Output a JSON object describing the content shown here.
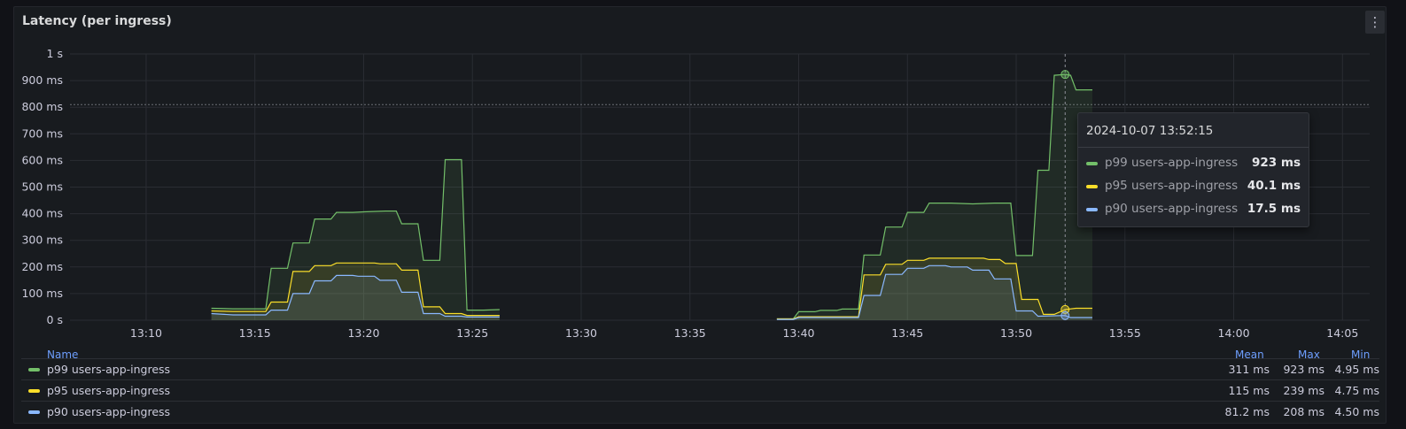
{
  "panel": {
    "title": "Latency (per ingress)",
    "menu_icon": "vertical-dots-icon"
  },
  "chart_data": {
    "type": "area",
    "title": "Latency (per ingress)",
    "x_ticks": [
      "13:10",
      "13:15",
      "13:20",
      "13:25",
      "13:30",
      "13:35",
      "13:40",
      "13:45",
      "13:50",
      "13:55",
      "14:00",
      "14:05"
    ],
    "y_ticks": [
      "0 s",
      "100 ms",
      "200 ms",
      "300 ms",
      "400 ms",
      "500 ms",
      "600 ms",
      "700 ms",
      "800 ms",
      "900 ms",
      "1 s"
    ],
    "ylim": [
      0,
      1000
    ],
    "y_unit": "ms",
    "threshold_ms": 810,
    "grid": true,
    "series": [
      {
        "name": "p99 users-app-ingress",
        "color": "#73bf69",
        "segments": [
          [
            [
              "13:13:00",
              45
            ],
            [
              "13:14:00",
              43
            ],
            [
              "13:15:30",
              43
            ],
            [
              "13:15:45",
              195
            ],
            [
              "13:16:30",
              195
            ],
            [
              "13:16:45",
              290
            ],
            [
              "13:17:30",
              290
            ],
            [
              "13:17:45",
              380
            ],
            [
              "13:18:30",
              380
            ],
            [
              "13:18:45",
              405
            ],
            [
              "13:19:30",
              405
            ],
            [
              "13:20:00",
              407
            ],
            [
              "13:21:00",
              410
            ],
            [
              "13:21:30",
              410
            ],
            [
              "13:21:45",
              362
            ],
            [
              "13:22:30",
              362
            ],
            [
              "13:22:45",
              225
            ],
            [
              "13:23:30",
              225
            ],
            [
              "13:23:45",
              603
            ],
            [
              "13:24:30",
              603
            ],
            [
              "13:24:45",
              38
            ],
            [
              "13:25:30",
              38
            ],
            [
              "13:26:15",
              40
            ]
          ],
          [
            [
              "13:39:00",
              5
            ],
            [
              "13:39:45",
              5
            ],
            [
              "13:40:00",
              32
            ],
            [
              "13:40:45",
              32
            ],
            [
              "13:41:00",
              37
            ],
            [
              "13:41:45",
              37
            ],
            [
              "13:42:00",
              42
            ],
            [
              "13:42:45",
              42
            ],
            [
              "13:43:00",
              245
            ],
            [
              "13:43:45",
              245
            ],
            [
              "13:44:00",
              350
            ],
            [
              "13:44:45",
              350
            ],
            [
              "13:45:00",
              405
            ],
            [
              "13:45:45",
              405
            ],
            [
              "13:46:00",
              440
            ],
            [
              "13:47:00",
              440
            ],
            [
              "13:48:00",
              437
            ],
            [
              "13:49:00",
              440
            ],
            [
              "13:49:45",
              440
            ],
            [
              "13:50:00",
              243
            ],
            [
              "13:50:45",
              243
            ],
            [
              "13:51:00",
              563
            ],
            [
              "13:51:30",
              563
            ],
            [
              "13:51:45",
              920
            ],
            [
              "13:52:15",
              923
            ],
            [
              "13:52:30",
              920
            ],
            [
              "13:52:45",
              865
            ],
            [
              "13:53:30",
              865
            ]
          ]
        ]
      },
      {
        "name": "p95 users-app-ingress",
        "color": "#fade2a",
        "segments": [
          [
            [
              "13:13:00",
              35
            ],
            [
              "13:14:00",
              33
            ],
            [
              "13:15:30",
              33
            ],
            [
              "13:15:45",
              68
            ],
            [
              "13:16:30",
              68
            ],
            [
              "13:16:45",
              183
            ],
            [
              "13:17:30",
              183
            ],
            [
              "13:17:45",
              205
            ],
            [
              "13:18:30",
              205
            ],
            [
              "13:18:45",
              215
            ],
            [
              "13:20:30",
              215
            ],
            [
              "13:20:45",
              212
            ],
            [
              "13:21:30",
              212
            ],
            [
              "13:21:45",
              188
            ],
            [
              "13:22:30",
              188
            ],
            [
              "13:22:45",
              50
            ],
            [
              "13:23:30",
              50
            ],
            [
              "13:23:45",
              25
            ],
            [
              "13:24:30",
              25
            ],
            [
              "13:24:45",
              18
            ],
            [
              "13:26:15",
              18
            ]
          ],
          [
            [
              "13:39:00",
              5
            ],
            [
              "13:39:45",
              5
            ],
            [
              "13:40:00",
              13
            ],
            [
              "13:42:45",
              13
            ],
            [
              "13:43:00",
              170
            ],
            [
              "13:43:45",
              170
            ],
            [
              "13:44:00",
              210
            ],
            [
              "13:44:45",
              210
            ],
            [
              "13:45:00",
              225
            ],
            [
              "13:45:45",
              225
            ],
            [
              "13:46:00",
              233
            ],
            [
              "13:48:30",
              233
            ],
            [
              "13:48:45",
              228
            ],
            [
              "13:49:15",
              228
            ],
            [
              "13:49:30",
              213
            ],
            [
              "13:50:00",
              213
            ],
            [
              "13:50:15",
              78
            ],
            [
              "13:51:00",
              78
            ],
            [
              "13:51:15",
              22
            ],
            [
              "13:51:45",
              22
            ],
            [
              "13:52:15",
              40.1
            ],
            [
              "13:52:45",
              45
            ],
            [
              "13:53:30",
              45
            ]
          ]
        ]
      },
      {
        "name": "p90 users-app-ingress",
        "color": "#8ab8ff",
        "segments": [
          [
            [
              "13:13:00",
              25
            ],
            [
              "13:14:00",
              20
            ],
            [
              "13:15:30",
              20
            ],
            [
              "13:15:45",
              38
            ],
            [
              "13:16:30",
              38
            ],
            [
              "13:16:45",
              100
            ],
            [
              "13:17:30",
              100
            ],
            [
              "13:17:45",
              148
            ],
            [
              "13:18:30",
              148
            ],
            [
              "13:18:45",
              168
            ],
            [
              "13:19:30",
              168
            ],
            [
              "13:19:45",
              165
            ],
            [
              "13:20:30",
              165
            ],
            [
              "13:20:45",
              150
            ],
            [
              "13:21:30",
              150
            ],
            [
              "13:21:45",
              105
            ],
            [
              "13:22:30",
              105
            ],
            [
              "13:22:45",
              25
            ],
            [
              "13:23:30",
              25
            ],
            [
              "13:23:45",
              15
            ],
            [
              "13:24:30",
              15
            ],
            [
              "13:24:45",
              12
            ],
            [
              "13:26:15",
              12
            ]
          ],
          [
            [
              "13:39:00",
              3
            ],
            [
              "13:39:45",
              3
            ],
            [
              "13:40:00",
              10
            ],
            [
              "13:42:45",
              10
            ],
            [
              "13:43:00",
              93
            ],
            [
              "13:43:45",
              93
            ],
            [
              "13:44:00",
              172
            ],
            [
              "13:44:45",
              172
            ],
            [
              "13:45:00",
              195
            ],
            [
              "13:45:45",
              195
            ],
            [
              "13:46:00",
              205
            ],
            [
              "13:46:45",
              205
            ],
            [
              "13:47:00",
              200
            ],
            [
              "13:47:45",
              200
            ],
            [
              "13:48:00",
              188
            ],
            [
              "13:48:45",
              188
            ],
            [
              "13:49:00",
              155
            ],
            [
              "13:49:45",
              155
            ],
            [
              "13:50:00",
              35
            ],
            [
              "13:50:45",
              35
            ],
            [
              "13:51:00",
              15
            ],
            [
              "13:52:15",
              17.5
            ],
            [
              "13:52:30",
              10
            ],
            [
              "13:53:30",
              10
            ]
          ]
        ]
      }
    ],
    "hover": {
      "time": "13:52:15"
    }
  },
  "legend": {
    "headers": {
      "name": "Name",
      "mean": "Mean",
      "max": "Max",
      "min": "Min"
    },
    "rows": [
      {
        "name": "p99 users-app-ingress",
        "color": "#73bf69",
        "mean": "311 ms",
        "max": "923 ms",
        "min": "4.95 ms"
      },
      {
        "name": "p95 users-app-ingress",
        "color": "#fade2a",
        "mean": "115 ms",
        "max": "239 ms",
        "min": "4.75 ms"
      },
      {
        "name": "p90 users-app-ingress",
        "color": "#8ab8ff",
        "mean": "81.2 ms",
        "max": "208 ms",
        "min": "4.50 ms"
      }
    ]
  },
  "tooltip": {
    "time": "2024-10-07 13:52:15",
    "rows": [
      {
        "name": "p99 users-app-ingress",
        "color": "#73bf69",
        "value": "923 ms"
      },
      {
        "name": "p95 users-app-ingress",
        "color": "#fade2a",
        "value": "40.1 ms"
      },
      {
        "name": "p90 users-app-ingress",
        "color": "#8ab8ff",
        "value": "17.5 ms"
      }
    ]
  }
}
